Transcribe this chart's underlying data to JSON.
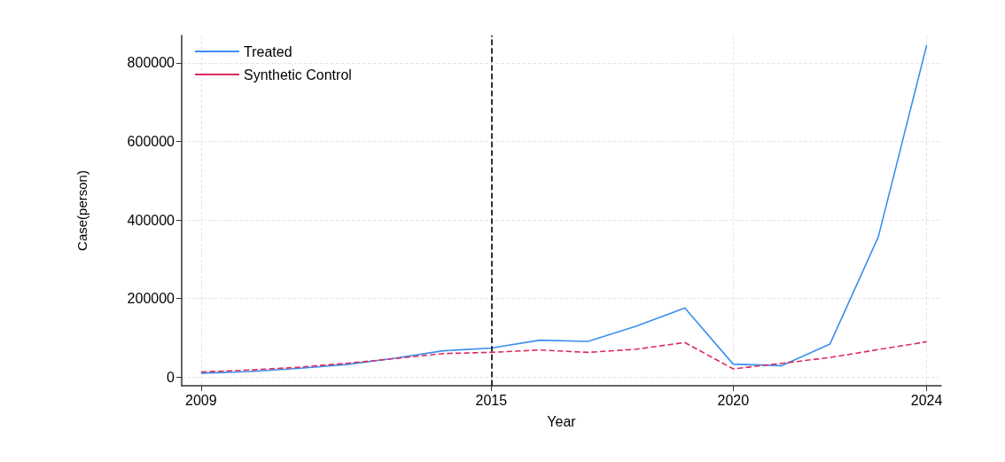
{
  "chart_data": {
    "type": "line",
    "xlabel": "Year",
    "ylabel": "Case(person)",
    "x": [
      2009,
      2010,
      2011,
      2012,
      2013,
      2014,
      2015,
      2016,
      2017,
      2018,
      2019,
      2020,
      2021,
      2022,
      2023,
      2024
    ],
    "series": [
      {
        "name": "Treated",
        "color": "#3a8ff0",
        "line_style": "solid",
        "values": [
          10000,
          14000,
          22000,
          32000,
          48000,
          67000,
          74000,
          94000,
          91000,
          130000,
          176000,
          33000,
          29000,
          84000,
          357000,
          845000
        ]
      },
      {
        "name": "Synthetic Control",
        "color": "#dc2c5c",
        "line_style": "dashed",
        "values": [
          13000,
          18000,
          25000,
          35000,
          47000,
          60000,
          63000,
          69000,
          63000,
          71000,
          88000,
          21000,
          35000,
          50000,
          70000,
          90000
        ]
      }
    ],
    "xlim": [
      2008.6,
      2024.3
    ],
    "xticks": [
      2009,
      2015,
      2020,
      2024
    ],
    "ylim": [
      -22000,
      870000
    ],
    "yticks": [
      0,
      200000,
      400000,
      600000,
      800000
    ],
    "ref_lines": [
      {
        "axis": "x",
        "value": 2015,
        "color": "#000000",
        "line_style": "dashed"
      }
    ],
    "grid": true,
    "legend": "top left",
    "marker": "none"
  }
}
